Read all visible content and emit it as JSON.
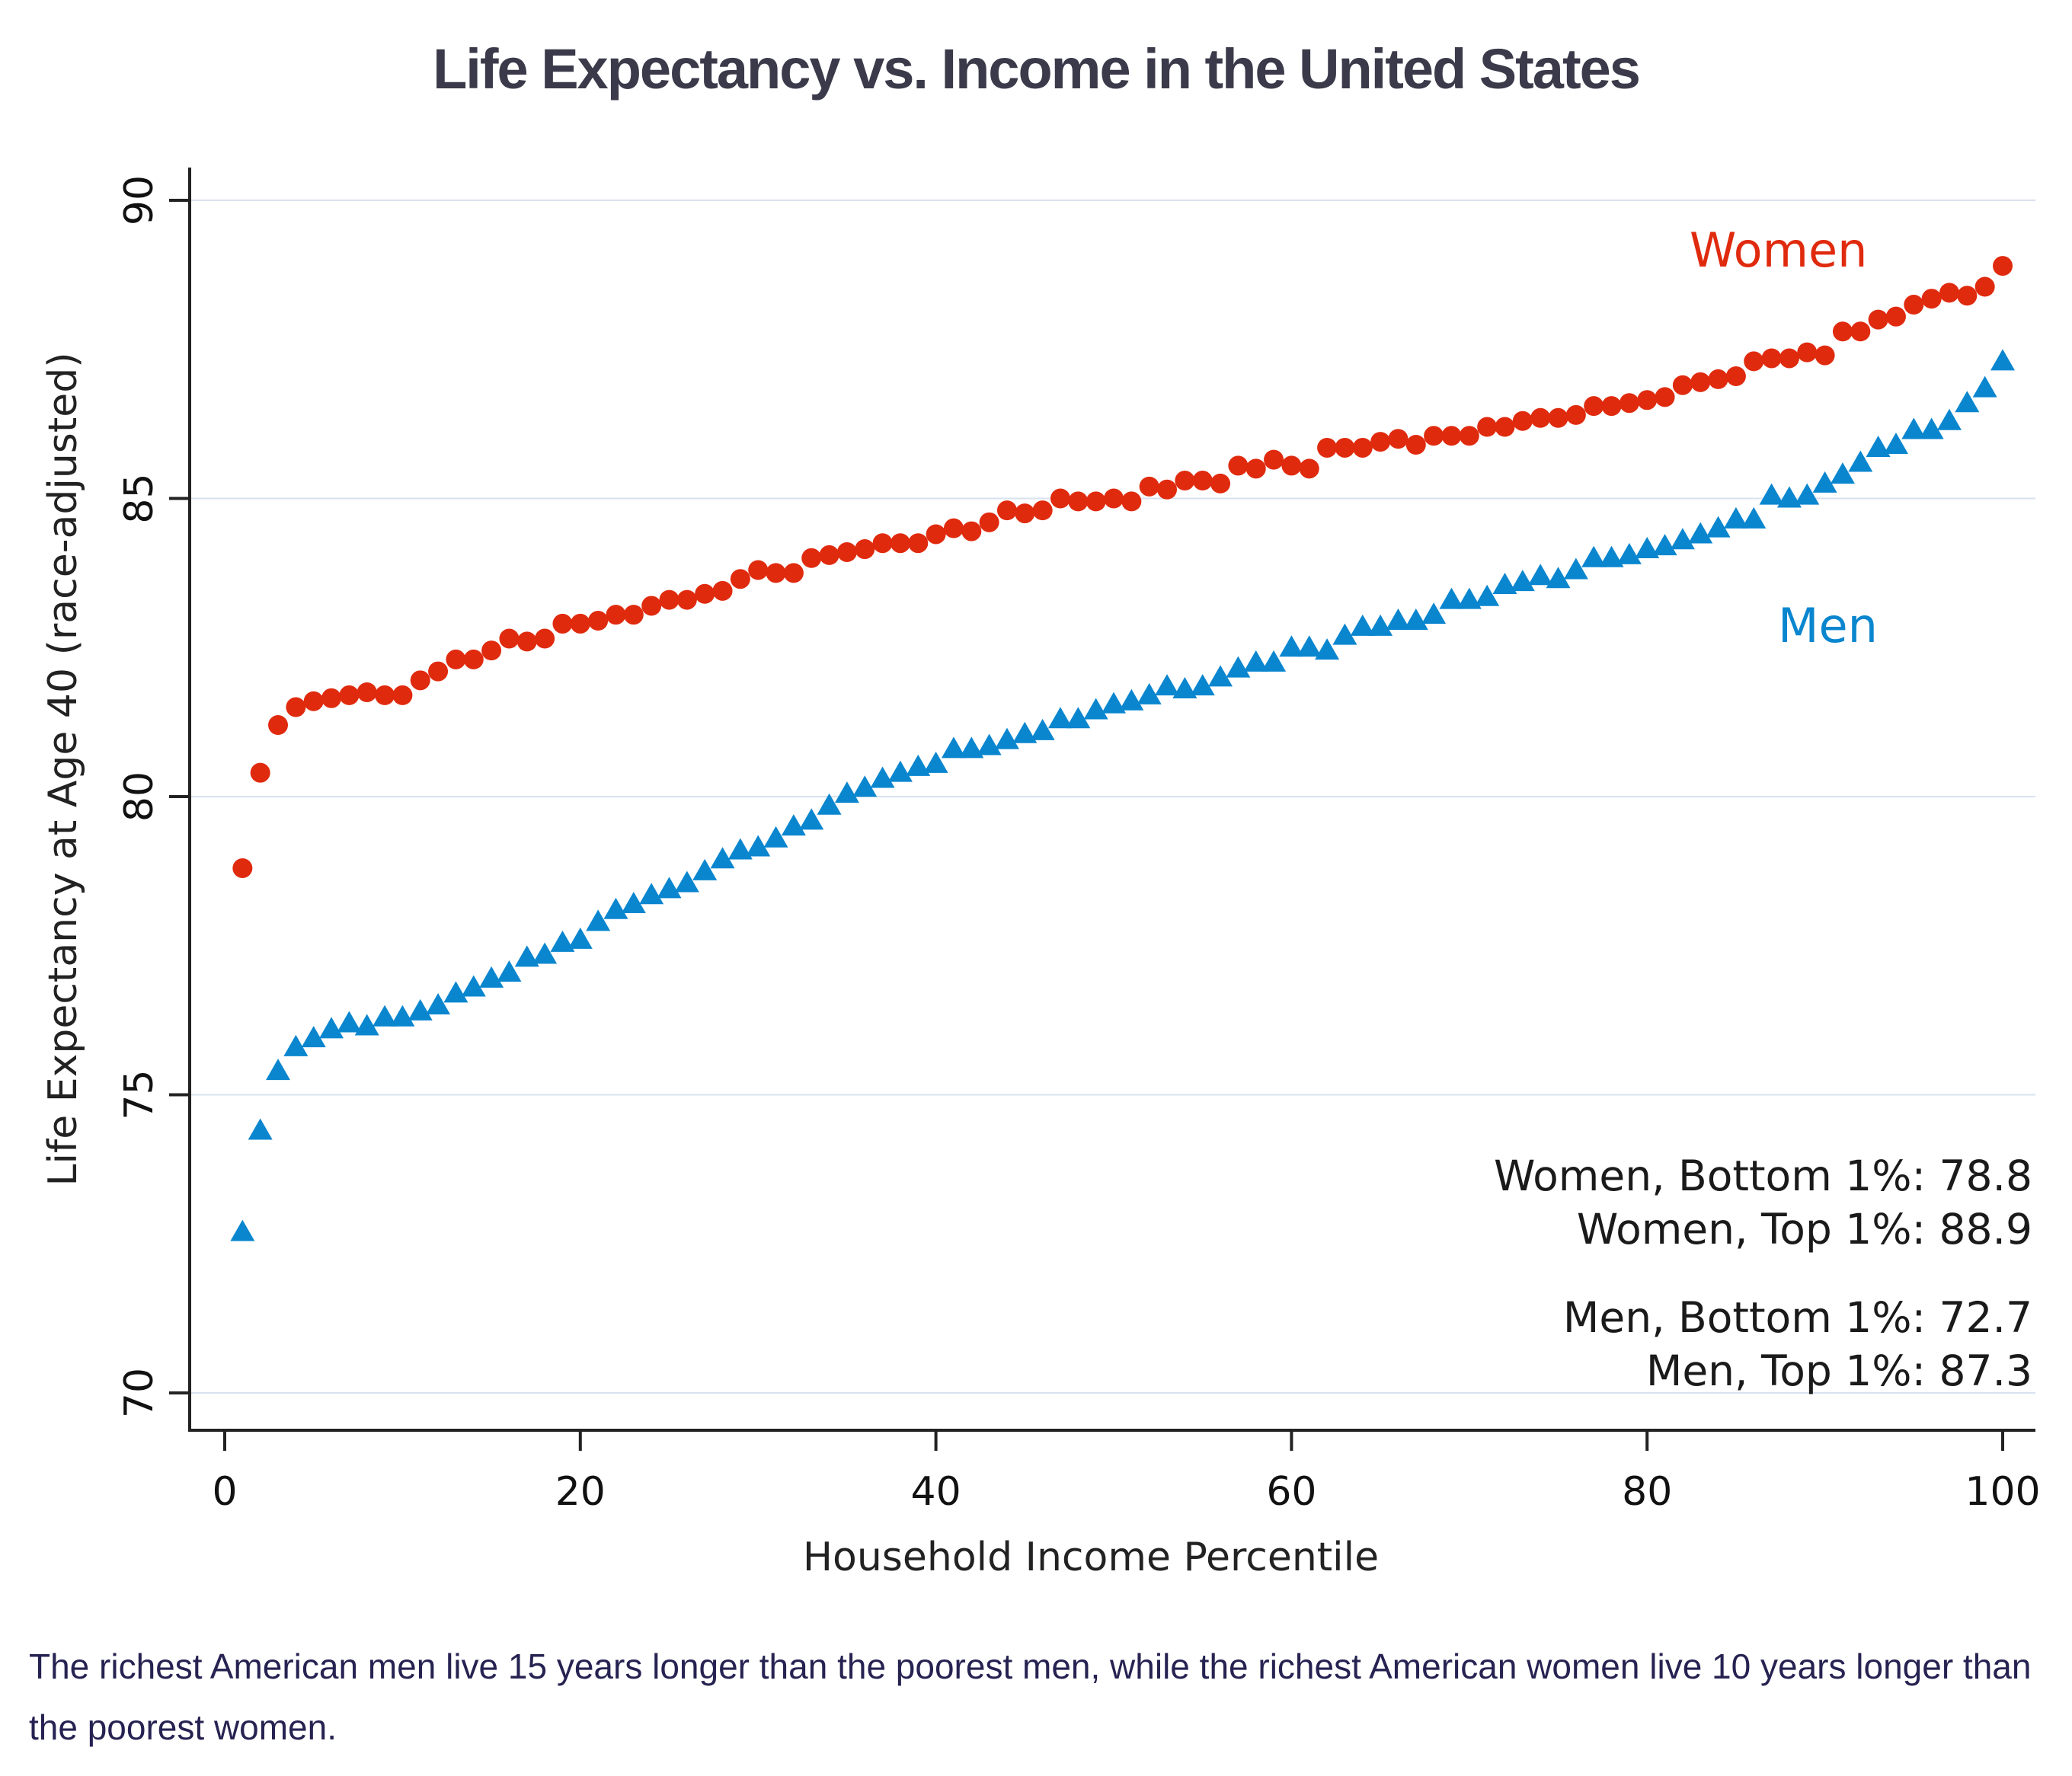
{
  "title": "Life Expectancy vs. Income in the United States",
  "caption": "The richest American men live 15 years longer than the poorest men, while the richest American women live 10 years longer than the poorest women.",
  "colors": {
    "women": "#e02a0e",
    "men": "#0a86cf",
    "grid": "#d8e2ee",
    "axis": "#222222"
  },
  "chart_data": {
    "type": "scatter",
    "title": "Life Expectancy vs. Income in the United States",
    "xlabel": "Household Income Percentile",
    "ylabel": "Life Expectancy at Age 40 (race-adjusted)",
    "xlim": [
      0,
      100
    ],
    "ylim": [
      70,
      90
    ],
    "xticks": [
      0,
      20,
      40,
      60,
      80,
      100
    ],
    "yticks": [
      70,
      75,
      80,
      85,
      90
    ],
    "grid": "horizontal",
    "x": [
      1,
      2,
      3,
      4,
      5,
      6,
      7,
      8,
      9,
      10,
      11,
      12,
      13,
      14,
      15,
      16,
      17,
      18,
      19,
      20,
      21,
      22,
      23,
      24,
      25,
      26,
      27,
      28,
      29,
      30,
      31,
      32,
      33,
      34,
      35,
      36,
      37,
      38,
      39,
      40,
      41,
      42,
      43,
      44,
      45,
      46,
      47,
      48,
      49,
      50,
      51,
      52,
      53,
      54,
      55,
      56,
      57,
      58,
      59,
      60,
      61,
      62,
      63,
      64,
      65,
      66,
      67,
      68,
      69,
      70,
      71,
      72,
      73,
      74,
      75,
      76,
      77,
      78,
      79,
      80,
      81,
      82,
      83,
      84,
      85,
      86,
      87,
      88,
      89,
      90,
      91,
      92,
      93,
      94,
      95,
      96,
      97,
      98,
      99,
      100
    ],
    "series": [
      {
        "name": "Women",
        "marker": "circle",
        "label": "Women",
        "values": [
          78.8,
          80.4,
          81.2,
          81.5,
          81.6,
          81.65,
          81.7,
          81.75,
          81.7,
          81.7,
          81.95,
          82.1,
          82.3,
          82.3,
          82.45,
          82.65,
          82.6,
          82.65,
          82.9,
          82.9,
          82.95,
          83.05,
          83.05,
          83.2,
          83.3,
          83.3,
          83.4,
          83.45,
          83.65,
          83.8,
          83.75,
          83.75,
          84.0,
          84.05,
          84.1,
          84.15,
          84.25,
          84.25,
          84.25,
          84.4,
          84.5,
          84.45,
          84.6,
          84.8,
          84.75,
          84.8,
          85.0,
          84.95,
          84.95,
          85.0,
          84.95,
          85.2,
          85.15,
          85.3,
          85.3,
          85.25,
          85.55,
          85.5,
          85.65,
          85.55,
          85.5,
          85.85,
          85.85,
          85.85,
          85.95,
          86.0,
          85.9,
          86.05,
          86.05,
          86.05,
          86.2,
          86.2,
          86.3,
          86.35,
          86.35,
          86.4,
          86.55,
          86.55,
          86.6,
          86.65,
          86.7,
          86.9,
          86.95,
          87.0,
          87.05,
          87.3,
          87.35,
          87.35,
          87.45,
          87.4,
          87.8,
          87.8,
          88.0,
          88.05,
          88.25,
          88.35,
          88.45,
          88.4,
          88.55,
          88.9
        ]
      },
      {
        "name": "Men",
        "marker": "triangle",
        "label": "Men",
        "values": [
          72.7,
          74.4,
          75.4,
          75.8,
          75.95,
          76.1,
          76.2,
          76.15,
          76.3,
          76.3,
          76.4,
          76.5,
          76.7,
          76.8,
          76.95,
          77.05,
          77.3,
          77.35,
          77.55,
          77.6,
          77.9,
          78.1,
          78.2,
          78.35,
          78.45,
          78.55,
          78.75,
          78.95,
          79.1,
          79.15,
          79.3,
          79.5,
          79.6,
          79.85,
          80.05,
          80.15,
          80.3,
          80.4,
          80.5,
          80.55,
          80.8,
          80.8,
          80.85,
          80.95,
          81.05,
          81.1,
          81.3,
          81.3,
          81.45,
          81.55,
          81.6,
          81.7,
          81.85,
          81.8,
          81.85,
          82.0,
          82.15,
          82.25,
          82.25,
          82.5,
          82.5,
          82.45,
          82.7,
          82.85,
          82.85,
          82.95,
          82.95,
          83.05,
          83.3,
          83.3,
          83.35,
          83.55,
          83.6,
          83.7,
          83.65,
          83.8,
          84.0,
          84.0,
          84.05,
          84.15,
          84.2,
          84.3,
          84.4,
          84.5,
          84.65,
          84.65,
          85.05,
          85.0,
          85.05,
          85.25,
          85.4,
          85.6,
          85.85,
          85.9,
          86.15,
          86.15,
          86.3,
          86.6,
          86.85,
          87.3
        ]
      }
    ],
    "annotations": [
      "Women, Bottom 1%: 78.8",
      "Women, Top 1%: 88.9",
      "Men, Bottom 1%: 72.7",
      "Men, Top 1%: 87.3"
    ],
    "series_labels": {
      "women": "Women",
      "men": "Men"
    }
  }
}
